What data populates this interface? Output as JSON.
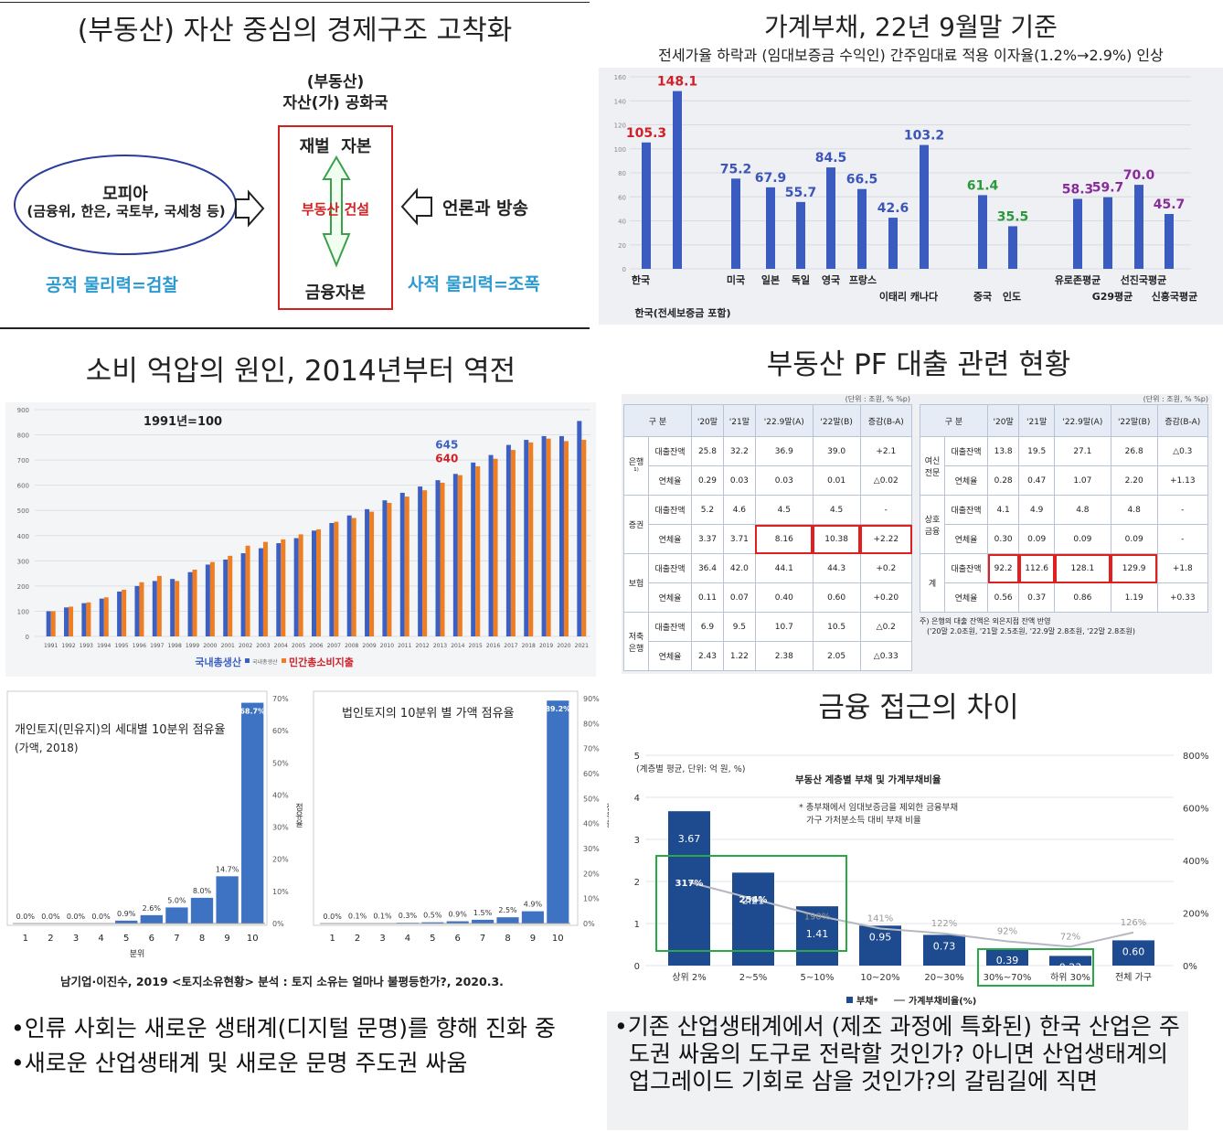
{
  "panels": {
    "p1": {
      "title": "(부동산) 자산 중심의 경제구조 고착화",
      "mafia": "모피아",
      "mafia_sub": "(금융위, 한은, 국토부, 국세청 등)",
      "header": "(부동산)",
      "header2": "자산(가) 공화국",
      "top": "재벌  자본",
      "middle": "부동산 건설",
      "bottom": "금융자본",
      "media": "언론과 방송",
      "public": "공적 물리력=검찰",
      "private": "사적 물리력=조폭"
    },
    "p2": {
      "title": "가계부채, 22년 9월말 기준",
      "subtitle": "전세가율 하락과 (임대보증금 수익인) 간주임대료 적용 이자율(1.2%→2.9%) 인상"
    },
    "p3": {
      "title": "소비 억압의 원인, 2014년부터 역전",
      "base_note": "1991년=100"
    },
    "p4": {
      "title": "부동산 PF 대출 관련 현황"
    },
    "p6": {
      "title": "금융 접근의 차이"
    },
    "citation": "남기업·이진수, 2019 <토지소유현황> 분석 : 토지 소유는 얼마나 불평등한가?, 2020.3.",
    "bullets_left": [
      "인류 사회는 새로운 생태계(디지털 문명)를 향해 진화 중",
      "새로운 산업생태계 및 새로운 문명 주도권 싸움"
    ],
    "bullets_right": [
      "기존 산업생태계에서 (제조 과정에 특화된) 한국 산업은 주도권 싸움의 도구로 전락할 것인가? 아니면 산업생태계의 업그레이드 기회로 삼을 것인가?의 갈림길에 직면"
    ]
  },
  "pf_table": {
    "unit": "(단위 : 조원, % %p)",
    "headers": [
      "구 분",
      "",
      "'20말",
      "'21말",
      "'22.9말(A)",
      "'22말(B)",
      "증감(B-A)"
    ],
    "left_rows": [
      [
        "은행¹⁾",
        "대출잔액",
        "25.8",
        "32.2",
        "36.9",
        "39.0",
        "+2.1"
      ],
      [
        "",
        "연체율",
        "0.29",
        "0.03",
        "0.03",
        "0.01",
        "△0.02"
      ],
      [
        "증권",
        "대출잔액",
        "5.2",
        "4.6",
        "4.5",
        "4.5",
        "-"
      ],
      [
        "",
        "연체율",
        "3.37",
        "3.71",
        "8.16",
        "10.38",
        "+2.22"
      ],
      [
        "보험",
        "대출잔액",
        "36.4",
        "42.0",
        "44.1",
        "44.3",
        "+0.2"
      ],
      [
        "",
        "연체율",
        "0.11",
        "0.07",
        "0.40",
        "0.60",
        "+0.20"
      ],
      [
        "저축은행",
        "대출잔액",
        "6.9",
        "9.5",
        "10.7",
        "10.5",
        "△0.2"
      ],
      [
        "",
        "연체율",
        "2.43",
        "1.22",
        "2.38",
        "2.05",
        "△0.33"
      ]
    ],
    "right_rows": [
      [
        "여신전문",
        "대출잔액",
        "13.8",
        "19.5",
        "27.1",
        "26.8",
        "△0.3"
      ],
      [
        "",
        "연체율",
        "0.28",
        "0.47",
        "1.07",
        "2.20",
        "+1.13"
      ],
      [
        "상호금융",
        "대출잔액",
        "4.1",
        "4.9",
        "4.8",
        "4.8",
        "-"
      ],
      [
        "",
        "연체율",
        "0.30",
        "0.09",
        "0.09",
        "0.09",
        "-"
      ],
      [
        "계",
        "대출잔액",
        "92.2",
        "112.6",
        "128.1",
        "129.9",
        "+1.8"
      ],
      [
        "",
        "연체율",
        "0.56",
        "0.37",
        "0.86",
        "1.19",
        "+0.33"
      ]
    ],
    "footnote": "주) 은행의 대출 잔액은 외은지점 잔액 반영",
    "footnote2": "('20말 2.0조원, '21말 2.5조원, '22.9말 2.8조원, '22말 2.8조원)"
  },
  "chart_data": [
    {
      "type": "bar",
      "title": "가계부채, 22년 9월말 기준",
      "categories": [
        "한국",
        "한국(전세보증금 포함)",
        "미국",
        "일본",
        "독일",
        "영국",
        "프랑스",
        "이태리",
        "캐나다",
        "중국",
        "인도",
        "유로존평균",
        "G29평균",
        "선진국평균",
        "신흥국평균"
      ],
      "values": [
        105.3,
        148.1,
        75.2,
        67.9,
        55.7,
        84.5,
        66.5,
        42.6,
        103.2,
        61.4,
        35.5,
        58.3,
        59.7,
        70.0,
        45.7
      ],
      "label_colors": [
        "#d0202a",
        "#d0202a",
        "#3b55b8",
        "#3b55b8",
        "#3b55b8",
        "#3b55b8",
        "#3b55b8",
        "#3b55b8",
        "#3b55b8",
        "#2a9a3a",
        "#2a9a3a",
        "#8a2b9a",
        "#8a2b9a",
        "#8a2b9a",
        "#8a2b9a"
      ],
      "ylim": [
        0,
        160
      ],
      "yticks": [
        "0",
        "20",
        "40",
        "60",
        "80",
        "100",
        "120",
        "140",
        "160"
      ]
    },
    {
      "type": "bar",
      "title": "1991년=100",
      "categories": [
        "1991",
        "1992",
        "1993",
        "1994",
        "1995",
        "1996",
        "1997",
        "1998",
        "1999",
        "2000",
        "2001",
        "2002",
        "2003",
        "2004",
        "2005",
        "2006",
        "2007",
        "2008",
        "2009",
        "2010",
        "2011",
        "2012",
        "2013",
        "2014",
        "2015",
        "2016",
        "2017",
        "2018",
        "2019",
        "2020",
        "2021"
      ],
      "series": [
        {
          "name": "국내총생산",
          "color": "#3c5fc4",
          "values": [
            100,
            115,
            132,
            150,
            178,
            200,
            220,
            228,
            255,
            285,
            305,
            330,
            350,
            370,
            390,
            420,
            450,
            480,
            505,
            540,
            570,
            595,
            620,
            645,
            690,
            720,
            760,
            780,
            795,
            795,
            855
          ]
        },
        {
          "name": "민간총소비지출",
          "color": "#ef7d22",
          "values": [
            100,
            118,
            135,
            155,
            185,
            215,
            240,
            220,
            265,
            295,
            320,
            360,
            375,
            385,
            405,
            425,
            455,
            470,
            495,
            530,
            555,
            580,
            610,
            640,
            675,
            705,
            740,
            770,
            785,
            775,
            780
          ]
        }
      ],
      "legend_middle": "국내총생산",
      "annotations": [
        "645",
        "640"
      ],
      "ylim": [
        0,
        900
      ],
      "yticks": [
        "0",
        "100",
        "200",
        "300",
        "400",
        "500",
        "600",
        "700",
        "800",
        "900"
      ]
    },
    {
      "type": "bar",
      "title": "개인토지(민유지)의 세대별 10분위 점유율",
      "subtitle": "(가액, 2018)",
      "categories": [
        "1",
        "2",
        "3",
        "4",
        "5",
        "6",
        "7",
        "8",
        "9",
        "10"
      ],
      "xlabel": "분위",
      "ylabel": "점유율",
      "values": [
        0.0,
        0.0,
        0.0,
        0.0,
        0.9,
        2.6,
        5.0,
        8.0,
        14.7,
        68.7
      ],
      "labels": [
        "0.0%",
        "0.0%",
        "0.0%",
        "0.0%",
        "0.9%",
        "2.6%",
        "5.0%",
        "8.0%",
        "14.7%",
        "68.7%"
      ],
      "ylim": [
        0,
        70
      ],
      "yticks": [
        "0%",
        "10%",
        "20%",
        "30%",
        "40%",
        "50%",
        "60%",
        "70%"
      ]
    },
    {
      "type": "bar",
      "title": "법인토지의 10분위 별 가액 점유율",
      "categories": [
        "1",
        "2",
        "3",
        "4",
        "5",
        "6",
        "7",
        "8",
        "9",
        "10"
      ],
      "ylabel": "점유율",
      "values": [
        0.0,
        0.1,
        0.1,
        0.3,
        0.5,
        0.9,
        1.5,
        2.5,
        4.9,
        89.2
      ],
      "labels": [
        "0.0%",
        "0.1%",
        "0.1%",
        "0.3%",
        "0.5%",
        "0.9%",
        "1.5%",
        "2.5%",
        "4.9%",
        "89.2%"
      ],
      "ylim": [
        0,
        90
      ],
      "yticks": [
        "0%",
        "10%",
        "20%",
        "30%",
        "40%",
        "50%",
        "60%",
        "70%",
        "80%",
        "90%"
      ]
    },
    {
      "type": "bar",
      "title": "부동산 계층별 부채 및 가계부채비율",
      "unit_note": "(계층별 평균, 단위: 억 원, %)",
      "note": "* 총부채에서 임대보증금을 제외한 금융부채",
      "note2": "가구 가처분소득 대비 부채 비율",
      "categories": [
        "상위 2%",
        "2~5%",
        "5~10%",
        "10~20%",
        "20~30%",
        "30%~70%",
        "하위 30%",
        "전체 가구"
      ],
      "series": [
        {
          "name": "부채*",
          "values": [
            3.67,
            2.21,
            1.41,
            0.95,
            0.73,
            0.39,
            0.23,
            0.6
          ]
        },
        {
          "name": "가계부채비율(%)",
          "values": [
            317,
            254,
            190,
            141,
            122,
            92,
            72,
            126
          ]
        }
      ],
      "ratio_labels": [
        "317%",
        "254%",
        "190%",
        "141%",
        "122%",
        "92%",
        "72%",
        "126%"
      ],
      "ylim": [
        0,
        5
      ],
      "y2lim": [
        0,
        800
      ],
      "yticks": [
        "0",
        "1",
        "2",
        "3",
        "4",
        "5"
      ],
      "y2ticks": [
        "0%",
        "200%",
        "400%",
        "600%",
        "800%"
      ]
    }
  ]
}
